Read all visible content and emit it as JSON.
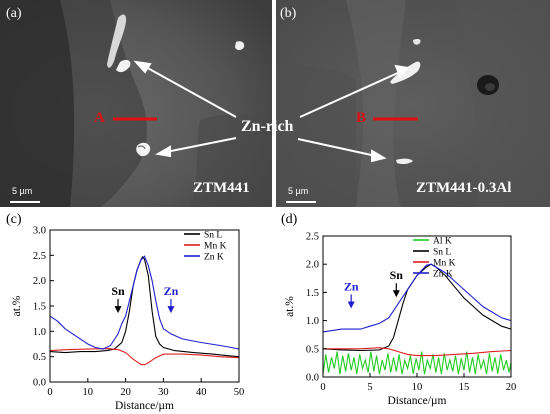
{
  "figure": {
    "sem": {
      "a": {
        "label": "(a)",
        "sample": "ZTM441",
        "point": "A",
        "scalebar": "5 µm"
      },
      "b": {
        "label": "(b)",
        "sample": "ZTM441-0.3Al",
        "point": "B",
        "scalebar": "5 µm"
      },
      "annotation": "Zn-rich"
    }
  },
  "chart_data": [
    {
      "panel": "(c)",
      "type": "line",
      "xlabel": "Distance/µm",
      "ylabel": "at.%",
      "xlim": [
        0,
        50
      ],
      "ylim": [
        0.0,
        3.0
      ],
      "xticks": [
        0,
        10,
        20,
        30,
        40,
        50
      ],
      "yticks": [
        0.0,
        0.5,
        1.0,
        1.5,
        2.0,
        2.5,
        3.0
      ],
      "legend_position": "top-right",
      "annotations": [
        {
          "text": "Sn",
          "x": 18,
          "y": 1.4,
          "color": "#000000"
        },
        {
          "text": "Zn",
          "x": 32,
          "y": 1.4,
          "color": "#1f1fd0"
        }
      ],
      "series": [
        {
          "name": "Sn L",
          "color": "#000000",
          "points": [
            [
              0,
              0.6
            ],
            [
              4,
              0.58
            ],
            [
              8,
              0.6
            ],
            [
              12,
              0.6
            ],
            [
              15,
              0.62
            ],
            [
              17,
              0.65
            ],
            [
              19,
              0.78
            ],
            [
              20,
              1.0
            ],
            [
              21,
              1.4
            ],
            [
              22,
              1.9
            ],
            [
              23,
              2.2
            ],
            [
              24,
              2.4
            ],
            [
              24.5,
              2.47
            ],
            [
              25,
              2.42
            ],
            [
              26,
              2.1
            ],
            [
              27,
              1.4
            ],
            [
              28,
              0.9
            ],
            [
              29,
              0.75
            ],
            [
              30,
              0.68
            ],
            [
              33,
              0.62
            ],
            [
              38,
              0.58
            ],
            [
              43,
              0.55
            ],
            [
              47,
              0.52
            ],
            [
              50,
              0.5
            ]
          ]
        },
        {
          "name": "Mn K",
          "color": "#e02020",
          "points": [
            [
              0,
              0.62
            ],
            [
              5,
              0.64
            ],
            [
              10,
              0.65
            ],
            [
              15,
              0.66
            ],
            [
              18,
              0.64
            ],
            [
              20,
              0.58
            ],
            [
              22,
              0.45
            ],
            [
              24,
              0.35
            ],
            [
              25,
              0.34
            ],
            [
              26,
              0.38
            ],
            [
              28,
              0.48
            ],
            [
              30,
              0.55
            ],
            [
              35,
              0.55
            ],
            [
              40,
              0.53
            ],
            [
              45,
              0.5
            ],
            [
              50,
              0.48
            ]
          ]
        },
        {
          "name": "Zn K",
          "color": "#1f1fd0",
          "points": [
            [
              0,
              1.3
            ],
            [
              2,
              1.2
            ],
            [
              4,
              1.05
            ],
            [
              6,
              0.95
            ],
            [
              8,
              0.85
            ],
            [
              10,
              0.75
            ],
            [
              12,
              0.68
            ],
            [
              14,
              0.65
            ],
            [
              16,
              0.72
            ],
            [
              18,
              0.95
            ],
            [
              19,
              1.15
            ],
            [
              20,
              1.3
            ],
            [
              21,
              1.6
            ],
            [
              22,
              1.9
            ],
            [
              23,
              2.2
            ],
            [
              24,
              2.4
            ],
            [
              25,
              2.48
            ],
            [
              26,
              2.3
            ],
            [
              27,
              2.0
            ],
            [
              28,
              1.6
            ],
            [
              29,
              1.25
            ],
            [
              30,
              1.05
            ],
            [
              32,
              0.95
            ],
            [
              35,
              0.85
            ],
            [
              40,
              0.78
            ],
            [
              45,
              0.72
            ],
            [
              48,
              0.68
            ],
            [
              50,
              0.65
            ]
          ]
        }
      ]
    },
    {
      "panel": "(d)",
      "type": "line",
      "xlabel": "Distance/µm",
      "ylabel": "at.%",
      "xlim": [
        0,
        20
      ],
      "ylim": [
        0.0,
        2.5
      ],
      "xticks": [
        0,
        5,
        10,
        15,
        20
      ],
      "yticks": [
        0.0,
        0.5,
        1.0,
        1.5,
        2.0,
        2.5
      ],
      "legend_position": "top-left",
      "annotations": [
        {
          "text": "Zn",
          "x": 3.0,
          "y": 1.25,
          "color": "#1f1fd0"
        },
        {
          "text": "Sn",
          "x": 7.8,
          "y": 1.45,
          "color": "#000000"
        }
      ],
      "series": [
        {
          "name": "Al K",
          "color": "#22cc22",
          "points": [
            [
              0,
              0.05
            ],
            [
              0.3,
              0.4
            ],
            [
              0.6,
              0.08
            ],
            [
              0.9,
              0.35
            ],
            [
              1.2,
              0.15
            ],
            [
              1.5,
              0.45
            ],
            [
              1.8,
              0.05
            ],
            [
              2.1,
              0.38
            ],
            [
              2.4,
              0.1
            ],
            [
              2.7,
              0.42
            ],
            [
              3.0,
              0.12
            ],
            [
              3.3,
              0.35
            ],
            [
              3.6,
              0.05
            ],
            [
              3.9,
              0.4
            ],
            [
              4.2,
              0.15
            ],
            [
              4.5,
              0.3
            ],
            [
              4.8,
              0.08
            ],
            [
              5.1,
              0.45
            ],
            [
              5.4,
              0.1
            ],
            [
              5.7,
              0.38
            ],
            [
              6.0,
              0.05
            ],
            [
              6.3,
              0.3
            ],
            [
              6.6,
              0.12
            ],
            [
              6.9,
              0.42
            ],
            [
              7.2,
              0.08
            ],
            [
              7.5,
              0.35
            ],
            [
              7.8,
              0.1
            ],
            [
              8.1,
              0.4
            ],
            [
              8.4,
              0.05
            ],
            [
              8.7,
              0.3
            ],
            [
              9.0,
              0.15
            ],
            [
              9.3,
              0.38
            ],
            [
              9.6,
              0.06
            ],
            [
              9.9,
              0.33
            ],
            [
              10.2,
              0.12
            ],
            [
              10.5,
              0.45
            ],
            [
              10.8,
              0.05
            ],
            [
              11.1,
              0.3
            ],
            [
              11.4,
              0.15
            ],
            [
              11.7,
              0.4
            ],
            [
              12.0,
              0.08
            ],
            [
              12.3,
              0.35
            ],
            [
              12.6,
              0.05
            ],
            [
              12.9,
              0.42
            ],
            [
              13.2,
              0.12
            ],
            [
              13.5,
              0.3
            ],
            [
              13.8,
              0.1
            ],
            [
              14.1,
              0.38
            ],
            [
              14.4,
              0.05
            ],
            [
              14.7,
              0.33
            ],
            [
              15.0,
              0.12
            ],
            [
              15.3,
              0.45
            ],
            [
              15.6,
              0.08
            ],
            [
              15.9,
              0.35
            ],
            [
              16.2,
              0.05
            ],
            [
              16.5,
              0.4
            ],
            [
              16.8,
              0.15
            ],
            [
              17.1,
              0.3
            ],
            [
              17.4,
              0.05
            ],
            [
              17.7,
              0.42
            ],
            [
              18.0,
              0.1
            ],
            [
              18.3,
              0.35
            ],
            [
              18.6,
              0.06
            ],
            [
              18.9,
              0.4
            ],
            [
              19.2,
              0.12
            ],
            [
              19.5,
              0.3
            ],
            [
              19.8,
              0.08
            ],
            [
              20.0,
              0.25
            ]
          ]
        },
        {
          "name": "Sn L",
          "color": "#000000",
          "points": [
            [
              0,
              0.5
            ],
            [
              2,
              0.48
            ],
            [
              4,
              0.47
            ],
            [
              6,
              0.48
            ],
            [
              7,
              0.55
            ],
            [
              7.5,
              0.7
            ],
            [
              8,
              1.0
            ],
            [
              8.5,
              1.3
            ],
            [
              9,
              1.55
            ],
            [
              10,
              1.8
            ],
            [
              11,
              1.95
            ],
            [
              11.5,
              2.0
            ],
            [
              12,
              1.95
            ],
            [
              13,
              1.8
            ],
            [
              14,
              1.6
            ],
            [
              15,
              1.4
            ],
            [
              16,
              1.25
            ],
            [
              17,
              1.1
            ],
            [
              18,
              1.0
            ],
            [
              19,
              0.9
            ],
            [
              20,
              0.85
            ]
          ]
        },
        {
          "name": "Mn K",
          "color": "#e02020",
          "points": [
            [
              0,
              0.5
            ],
            [
              2,
              0.5
            ],
            [
              4,
              0.5
            ],
            [
              6,
              0.52
            ],
            [
              7,
              0.5
            ],
            [
              8,
              0.45
            ],
            [
              9,
              0.4
            ],
            [
              10,
              0.38
            ],
            [
              12,
              0.38
            ],
            [
              14,
              0.4
            ],
            [
              16,
              0.42
            ],
            [
              18,
              0.45
            ],
            [
              20,
              0.47
            ]
          ]
        },
        {
          "name": "Zn K",
          "color": "#1f1fd0",
          "points": [
            [
              0,
              0.8
            ],
            [
              2,
              0.85
            ],
            [
              4,
              0.85
            ],
            [
              5,
              0.9
            ],
            [
              6,
              0.95
            ],
            [
              7,
              1.05
            ],
            [
              8,
              1.3
            ],
            [
              9,
              1.55
            ],
            [
              10,
              1.8
            ],
            [
              11,
              1.98
            ],
            [
              11.5,
              2.0
            ],
            [
              12,
              1.95
            ],
            [
              13,
              1.85
            ],
            [
              14,
              1.7
            ],
            [
              15,
              1.55
            ],
            [
              16,
              1.4
            ],
            [
              17,
              1.25
            ],
            [
              18,
              1.15
            ],
            [
              19,
              1.05
            ],
            [
              20,
              1.0
            ]
          ]
        }
      ]
    }
  ]
}
